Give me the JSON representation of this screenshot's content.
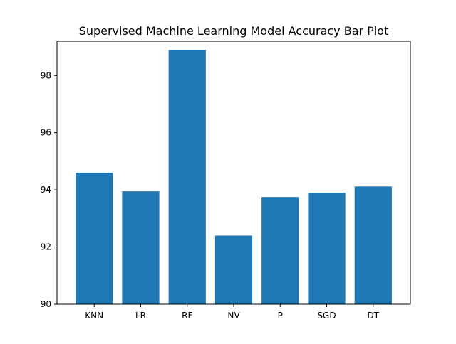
{
  "chart_data": {
    "type": "bar",
    "title": "Supervised Machine Learning Model Accuracy Bar Plot",
    "xlabel": "",
    "ylabel": "",
    "categories": [
      "KNN",
      "LR",
      "RF",
      "NV",
      "P",
      "SGD",
      "DT"
    ],
    "values": [
      94.6,
      93.95,
      98.9,
      92.4,
      93.75,
      93.9,
      94.12
    ],
    "ylim": [
      90,
      99.2
    ],
    "yticks": [
      "90",
      "92",
      "94",
      "96",
      "98"
    ],
    "bar_color": "#1f77b4",
    "grid": false,
    "legend": "none"
  }
}
